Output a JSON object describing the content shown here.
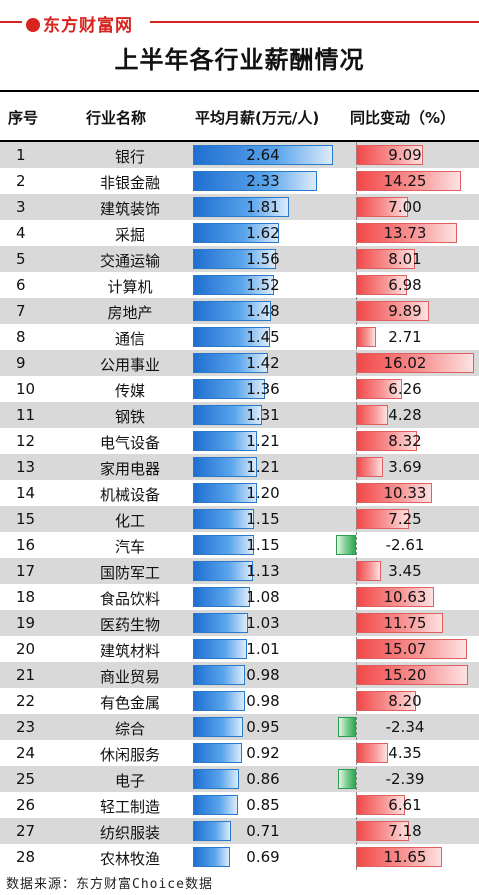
{
  "brand": {
    "name": "东方财富网"
  },
  "header": {
    "title": "上半年各行业薪酬情况",
    "col_index": "序号",
    "col_industry": "行业名称",
    "col_salary": "平均月薪(万元/人)",
    "col_change": "同比变动（%）"
  },
  "footer": {
    "source": "数据来源：东方财富Choice数据"
  },
  "colors": {
    "brand_red": "#d8241e",
    "salary_bar": "#1f6fd1",
    "change_positive": "#f24848",
    "change_negative": "#2ea853",
    "row_alt": "#d9d9d9"
  },
  "chart_data": {
    "type": "table",
    "title": "上半年各行业薪酬情况",
    "columns": [
      "序号",
      "行业名称",
      "平均月薪(万元/人)",
      "同比变动（%）"
    ],
    "salary_range": [
      0,
      2.64
    ],
    "change_range": [
      -2.61,
      16.02
    ],
    "rows": [
      {
        "index": "1",
        "industry": "银行",
        "salary": 2.64,
        "salary_label": "2.64",
        "change": 9.09,
        "change_label": "9.09"
      },
      {
        "index": "2",
        "industry": "非银金融",
        "salary": 2.33,
        "salary_label": "2.33",
        "change": 14.25,
        "change_label": "14.25"
      },
      {
        "index": "3",
        "industry": "建筑装饰",
        "salary": 1.81,
        "salary_label": "1.81",
        "change": 7.0,
        "change_label": "7.00"
      },
      {
        "index": "4",
        "industry": "采掘",
        "salary": 1.62,
        "salary_label": "1.62",
        "change": 13.73,
        "change_label": "13.73"
      },
      {
        "index": "5",
        "industry": "交通运输",
        "salary": 1.56,
        "salary_label": "1.56",
        "change": 8.01,
        "change_label": "8.01"
      },
      {
        "index": "6",
        "industry": "计算机",
        "salary": 1.52,
        "salary_label": "1.52",
        "change": 6.98,
        "change_label": "6.98"
      },
      {
        "index": "7",
        "industry": "房地产",
        "salary": 1.48,
        "salary_label": "1.48",
        "change": 9.89,
        "change_label": "9.89"
      },
      {
        "index": "8",
        "industry": "通信",
        "salary": 1.45,
        "salary_label": "1.45",
        "change": 2.71,
        "change_label": "2.71"
      },
      {
        "index": "9",
        "industry": "公用事业",
        "salary": 1.42,
        "salary_label": "1.42",
        "change": 16.02,
        "change_label": "16.02"
      },
      {
        "index": "10",
        "industry": "传媒",
        "salary": 1.36,
        "salary_label": "1.36",
        "change": 6.26,
        "change_label": "6.26"
      },
      {
        "index": "11",
        "industry": "钢铁",
        "salary": 1.31,
        "salary_label": "1.31",
        "change": 4.28,
        "change_label": "4.28"
      },
      {
        "index": "12",
        "industry": "电气设备",
        "salary": 1.21,
        "salary_label": "1.21",
        "change": 8.32,
        "change_label": "8.32"
      },
      {
        "index": "13",
        "industry": "家用电器",
        "salary": 1.21,
        "salary_label": "1.21",
        "change": 3.69,
        "change_label": "3.69"
      },
      {
        "index": "14",
        "industry": "机械设备",
        "salary": 1.2,
        "salary_label": "1.20",
        "change": 10.33,
        "change_label": "10.33"
      },
      {
        "index": "15",
        "industry": "化工",
        "salary": 1.15,
        "salary_label": "1.15",
        "change": 7.25,
        "change_label": "7.25"
      },
      {
        "index": "16",
        "industry": "汽车",
        "salary": 1.15,
        "salary_label": "1.15",
        "change": -2.61,
        "change_label": "-2.61"
      },
      {
        "index": "17",
        "industry": "国防军工",
        "salary": 1.13,
        "salary_label": "1.13",
        "change": 3.45,
        "change_label": "3.45"
      },
      {
        "index": "18",
        "industry": "食品饮料",
        "salary": 1.08,
        "salary_label": "1.08",
        "change": 10.63,
        "change_label": "10.63"
      },
      {
        "index": "19",
        "industry": "医药生物",
        "salary": 1.03,
        "salary_label": "1.03",
        "change": 11.75,
        "change_label": "11.75"
      },
      {
        "index": "20",
        "industry": "建筑材料",
        "salary": 1.01,
        "salary_label": "1.01",
        "change": 15.07,
        "change_label": "15.07"
      },
      {
        "index": "21",
        "industry": "商业贸易",
        "salary": 0.98,
        "salary_label": "0.98",
        "change": 15.2,
        "change_label": "15.20"
      },
      {
        "index": "22",
        "industry": "有色金属",
        "salary": 0.98,
        "salary_label": "0.98",
        "change": 8.2,
        "change_label": "8.20"
      },
      {
        "index": "23",
        "industry": "综合",
        "salary": 0.95,
        "salary_label": "0.95",
        "change": -2.34,
        "change_label": "-2.34"
      },
      {
        "index": "24",
        "industry": "休闲服务",
        "salary": 0.92,
        "salary_label": "0.92",
        "change": 4.35,
        "change_label": "4.35"
      },
      {
        "index": "25",
        "industry": "电子",
        "salary": 0.86,
        "salary_label": "0.86",
        "change": -2.39,
        "change_label": "-2.39"
      },
      {
        "index": "26",
        "industry": "轻工制造",
        "salary": 0.85,
        "salary_label": "0.85",
        "change": 6.61,
        "change_label": "6.61"
      },
      {
        "index": "27",
        "industry": "纺织服装",
        "salary": 0.71,
        "salary_label": "0.71",
        "change": 7.18,
        "change_label": "7.18"
      },
      {
        "index": "28",
        "industry": "农林牧渔",
        "salary": 0.69,
        "salary_label": "0.69",
        "change": 11.65,
        "change_label": "11.65"
      }
    ]
  }
}
